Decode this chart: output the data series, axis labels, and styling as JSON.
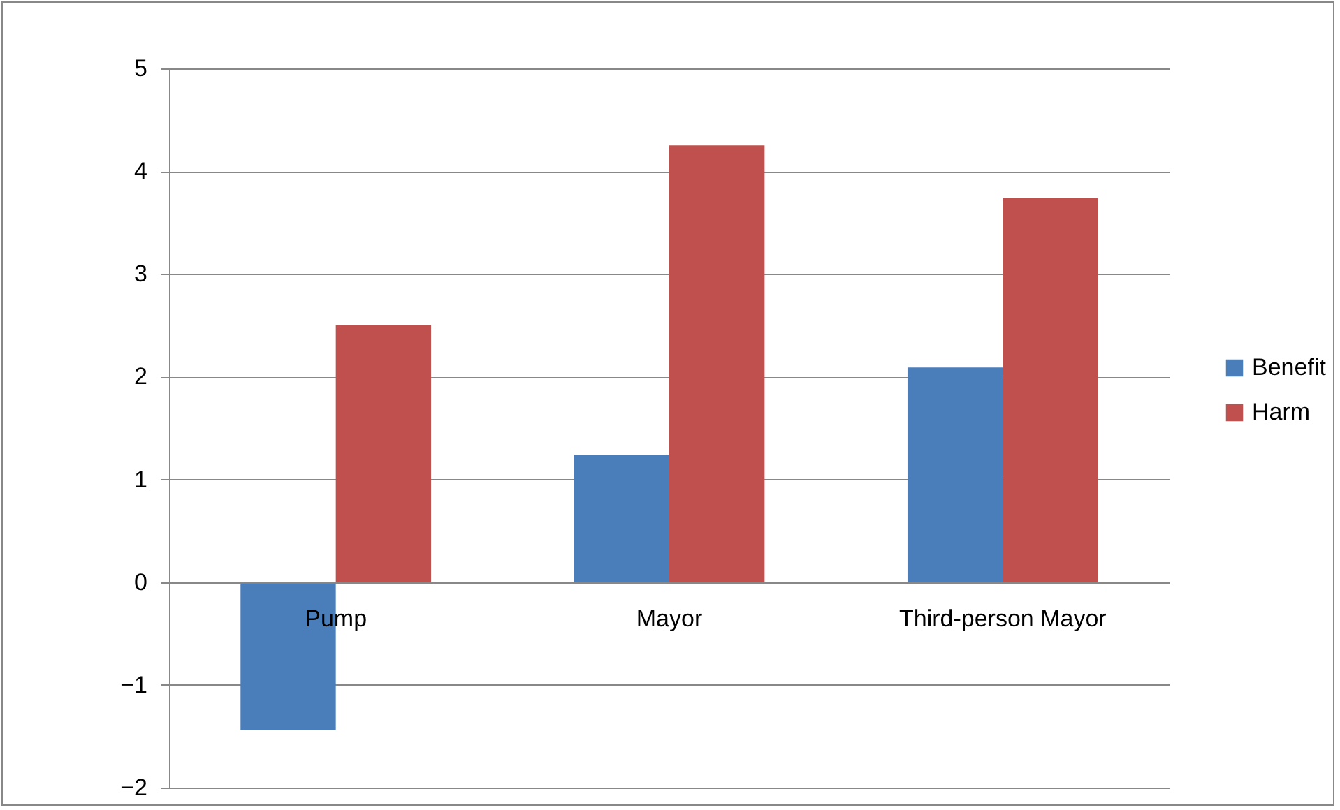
{
  "chart_data": {
    "type": "bar",
    "categories": [
      "Pump",
      "Mayor",
      "Third-person Mayor"
    ],
    "series": [
      {
        "name": "Benefit",
        "color": "#4a7ebb",
        "values": [
          -1.44,
          1.24,
          2.09
        ]
      },
      {
        "name": "Harm",
        "color": "#c0504d",
        "values": [
          2.5,
          4.25,
          3.74
        ]
      }
    ],
    "ylim": [
      -2,
      5
    ],
    "yticks": [
      -2,
      -1,
      0,
      1,
      2,
      3,
      4,
      5
    ],
    "grid": "y",
    "legend": "right"
  }
}
